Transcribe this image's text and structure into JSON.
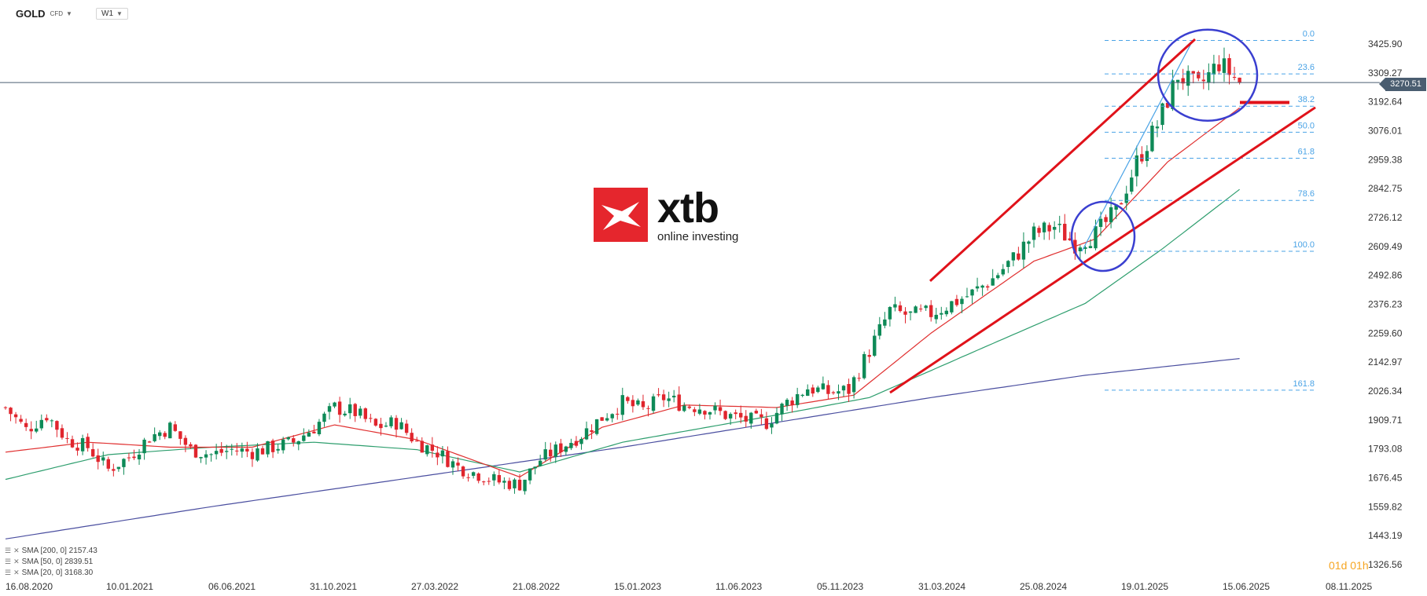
{
  "header": {
    "symbol": "GOLD",
    "symbol_suffix": "CFD",
    "timeframe": "W1"
  },
  "current_price": "3270.51",
  "countdown": "01d 01h",
  "brand": {
    "name": "xtb",
    "tagline": "online investing"
  },
  "indicators": [
    {
      "label": "SMA [200, 0] 2157.43",
      "color": "#4b4fa0"
    },
    {
      "label": "SMA [50, 0] 2839.51",
      "color": "#2e9e6e"
    },
    {
      "label": "SMA [20, 0] 3168.30",
      "color": "#e03030"
    }
  ],
  "colors": {
    "bull": "#0e8a57",
    "bear": "#e0252d",
    "sma20": "#e03030",
    "sma50": "#2e9e6e",
    "sma200": "#4b4fa0",
    "trend": "#e0121a",
    "fib": "#4aa3e6",
    "circle": "#3a3fd0",
    "price_line": "#4a5d70"
  },
  "chart_data": {
    "type": "candlestick",
    "title": "GOLD CFD W1",
    "ylim": [
      1326.56,
      3500
    ],
    "y_ticks": [
      "3425.90",
      "3309.27",
      "3192.64",
      "3076.01",
      "2959.38",
      "2842.75",
      "2726.12",
      "2609.49",
      "2492.86",
      "2376.23",
      "2259.60",
      "2142.97",
      "2026.34",
      "1909.71",
      "1793.08",
      "1676.45",
      "1559.82",
      "1443.19",
      "1326.56"
    ],
    "x_ticks": [
      "16.08.2020",
      "10.01.2021",
      "06.06.2021",
      "31.10.2021",
      "27.03.2022",
      "21.08.2022",
      "15.01.2023",
      "11.06.2023",
      "05.11.2023",
      "31.03.2024",
      "25.08.2024",
      "19.01.2025",
      "15.06.2025",
      "08.11.2025"
    ],
    "price_path": [
      [
        0,
        1960
      ],
      [
        4,
        1870
      ],
      [
        8,
        1930
      ],
      [
        12,
        1830
      ],
      [
        16,
        1800
      ],
      [
        20,
        1710
      ],
      [
        24,
        1760
      ],
      [
        28,
        1840
      ],
      [
        32,
        1880
      ],
      [
        36,
        1790
      ],
      [
        40,
        1770
      ],
      [
        44,
        1790
      ],
      [
        48,
        1780
      ],
      [
        52,
        1800
      ],
      [
        56,
        1820
      ],
      [
        60,
        1880
      ],
      [
        64,
        1960
      ],
      [
        68,
        1940
      ],
      [
        72,
        1880
      ],
      [
        76,
        1900
      ],
      [
        80,
        1820
      ],
      [
        84,
        1780
      ],
      [
        88,
        1720
      ],
      [
        92,
        1690
      ],
      [
        96,
        1660
      ],
      [
        100,
        1650
      ],
      [
        104,
        1750
      ],
      [
        108,
        1800
      ],
      [
        112,
        1850
      ],
      [
        116,
        1920
      ],
      [
        120,
        1980
      ],
      [
        124,
        1950
      ],
      [
        128,
        2000
      ],
      [
        132,
        1970
      ],
      [
        136,
        1960
      ],
      [
        140,
        1930
      ],
      [
        144,
        1910
      ],
      [
        148,
        1900
      ],
      [
        152,
        1980
      ],
      [
        156,
        2040
      ],
      [
        160,
        2020
      ],
      [
        164,
        2030
      ],
      [
        168,
        2190
      ],
      [
        172,
        2350
      ],
      [
        176,
        2330
      ],
      [
        180,
        2340
      ],
      [
        184,
        2380
      ],
      [
        188,
        2420
      ],
      [
        192,
        2480
      ],
      [
        196,
        2560
      ],
      [
        200,
        2660
      ],
      [
        204,
        2690
      ],
      [
        208,
        2620
      ],
      [
        212,
        2660
      ],
      [
        216,
        2750
      ],
      [
        220,
        2950
      ],
      [
        224,
        3100
      ],
      [
        228,
        3300
      ],
      [
        232,
        3250
      ],
      [
        236,
        3350
      ],
      [
        240,
        3270.51
      ]
    ],
    "sma_200": [
      [
        0,
        1430
      ],
      [
        40,
        1560
      ],
      [
        80,
        1680
      ],
      [
        120,
        1800
      ],
      [
        150,
        1900
      ],
      [
        180,
        2000
      ],
      [
        210,
        2090
      ],
      [
        240,
        2157.43
      ]
    ],
    "sma_50": [
      [
        0,
        1670
      ],
      [
        20,
        1770
      ],
      [
        40,
        1800
      ],
      [
        60,
        1820
      ],
      [
        80,
        1790
      ],
      [
        100,
        1700
      ],
      [
        120,
        1820
      ],
      [
        150,
        1930
      ],
      [
        168,
        2000
      ],
      [
        190,
        2200
      ],
      [
        210,
        2380
      ],
      [
        225,
        2600
      ],
      [
        240,
        2839.51
      ]
    ],
    "sma_20": [
      [
        0,
        1780
      ],
      [
        16,
        1820
      ],
      [
        32,
        1800
      ],
      [
        48,
        1800
      ],
      [
        64,
        1890
      ],
      [
        80,
        1830
      ],
      [
        100,
        1680
      ],
      [
        116,
        1880
      ],
      [
        132,
        1970
      ],
      [
        150,
        1960
      ],
      [
        165,
        2010
      ],
      [
        180,
        2260
      ],
      [
        200,
        2550
      ],
      [
        212,
        2640
      ],
      [
        226,
        2950
      ],
      [
        240,
        3168.3
      ]
    ],
    "fibonacci": {
      "levels": [
        "0.0",
        "23.6",
        "38.2",
        "50.0",
        "61.8",
        "78.6",
        "100.0",
        "161.8"
      ],
      "prices": [
        3440,
        3305,
        3175,
        3070,
        2965,
        2795,
        2590,
        2030
      ]
    },
    "trendlines": [
      {
        "from": [
          168,
          2020
        ],
        "to": [
          248,
          3170
        ]
      },
      {
        "from": [
          172,
          2470
        ],
        "to": [
          232,
          3440
        ]
      }
    ],
    "support_marker": 3190
  }
}
